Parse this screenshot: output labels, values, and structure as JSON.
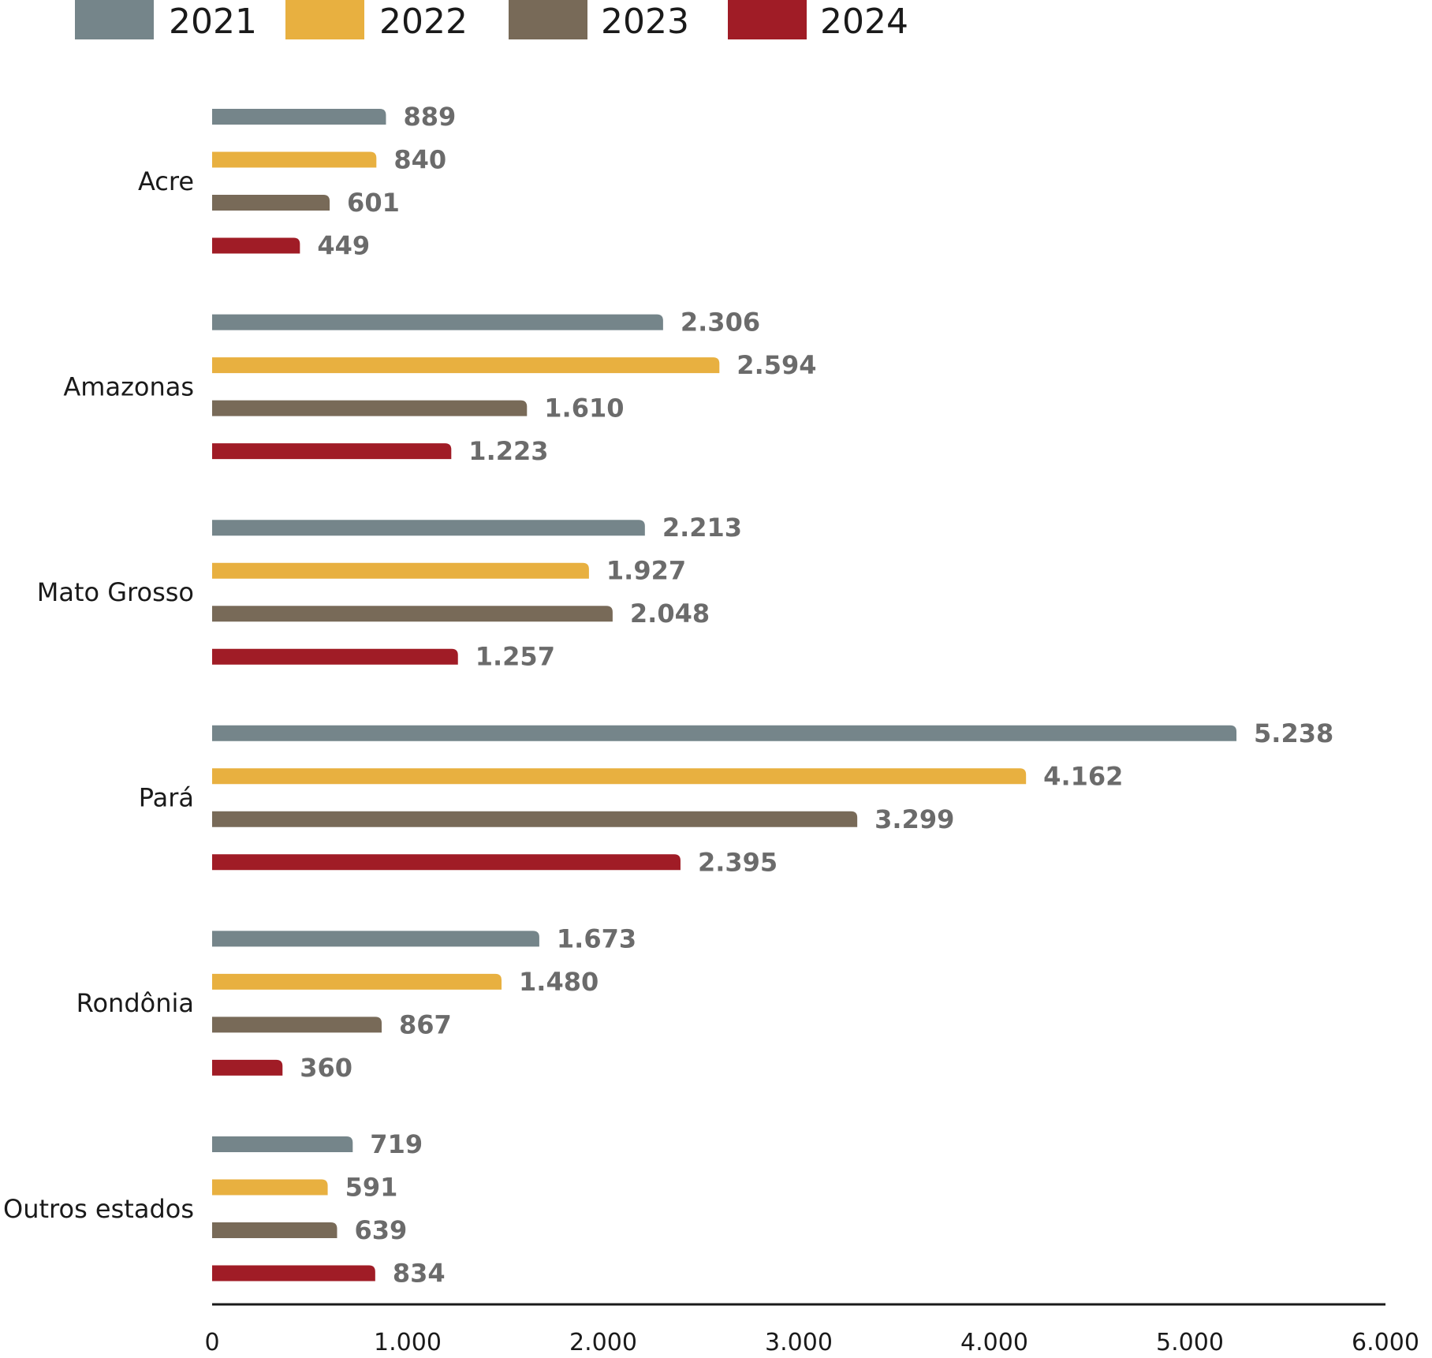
{
  "chart_data": {
    "type": "bar",
    "orientation": "horizontal",
    "title": "",
    "xlabel": "",
    "ylabel": "",
    "categories": [
      "Acre",
      "Amazonas",
      "Mato Grosso",
      "Pará",
      "Rondônia",
      "Outros estados"
    ],
    "series": [
      {
        "name": "2021",
        "color": "#75858a",
        "values": [
          889,
          2306,
          2213,
          5238,
          1673,
          719
        ],
        "labels": [
          "889",
          "2.306",
          "2.213",
          "5.238",
          "1.673",
          "719"
        ]
      },
      {
        "name": "2022",
        "color": "#e8b040",
        "values": [
          840,
          2594,
          1927,
          4162,
          1480,
          591
        ],
        "labels": [
          "840",
          "2.594",
          "1.927",
          "4.162",
          "1.480",
          "591"
        ]
      },
      {
        "name": "2023",
        "color": "#786a58",
        "values": [
          601,
          1610,
          2048,
          3299,
          867,
          639
        ],
        "labels": [
          "601",
          "1.610",
          "2.048",
          "3.299",
          "867",
          "639"
        ]
      },
      {
        "name": "2024",
        "color": "#a01c26",
        "values": [
          449,
          1223,
          1257,
          2395,
          360,
          834
        ],
        "labels": [
          "449",
          "1.223",
          "1.257",
          "2.395",
          "360",
          "834"
        ]
      }
    ],
    "xlim": [
      0,
      6000
    ],
    "xticks": [
      0,
      1000,
      2000,
      3000,
      4000,
      5000,
      6000
    ],
    "xtick_labels": [
      "0",
      "1.000",
      "2.000",
      "3.000",
      "4.000",
      "5.000",
      "6.000"
    ],
    "grid": false,
    "legend_position": "top-left"
  }
}
